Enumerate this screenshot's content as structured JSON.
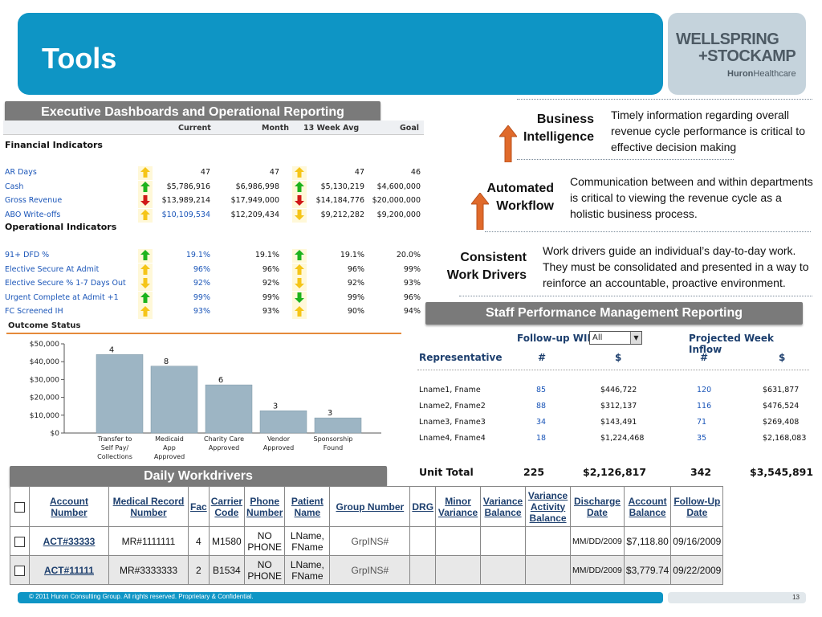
{
  "header": {
    "title": "Tools"
  },
  "logo": {
    "line1": "WELLSPRING",
    "line2": "+STOCKAMP",
    "line3_bold": "Huron",
    "line3": "Healthcare"
  },
  "sections": {
    "exec": "Executive Dashboards and Operational Reporting",
    "staff": "Staff Performance Management Reporting",
    "daily": "Daily Workdrivers"
  },
  "dashboard": {
    "columns": [
      "Current",
      "Month",
      "13 Week Avg",
      "Goal"
    ],
    "financial_title": "Financial Indicators",
    "operational_title": "Operational Indicators",
    "financial": [
      {
        "label": "AR Days",
        "a1": "up-yellow",
        "current": "47",
        "month": "47",
        "a2": "up-yellow",
        "avg": "47",
        "goal": "46"
      },
      {
        "label": "Cash",
        "a1": "up-green",
        "current": "$5,786,916",
        "month": "$6,986,998",
        "a2": "up-green",
        "avg": "$5,130,219",
        "goal": "$4,600,000"
      },
      {
        "label": "Gross Revenue",
        "a1": "down-red",
        "current": "$13,989,214",
        "month": "$17,949,000",
        "a2": "down-red",
        "avg": "$14,184,776",
        "goal": "$20,000,000"
      },
      {
        "label": "ABO Write-offs",
        "a1": "up-yellow",
        "current": "$10,109,534",
        "month": "$12,209,434",
        "a2": "down-yellow",
        "avg": "$9,212,282",
        "goal": "$9,200,000"
      }
    ],
    "operational": [
      {
        "label": "91+ DFD %",
        "a1": "up-green",
        "current": "19.1%",
        "month": "19.1%",
        "a2": "up-green",
        "avg": "19.1%",
        "goal": "20.0%"
      },
      {
        "label": "Elective Secure At Admit",
        "a1": "up-yellow",
        "current": "96%",
        "month": "96%",
        "a2": "up-yellow",
        "avg": "96%",
        "goal": "99%"
      },
      {
        "label": "Elective Secure % 1-7 Days Out",
        "a1": "down-yellow",
        "current": "92%",
        "month": "92%",
        "a2": "down-yellow",
        "avg": "92%",
        "goal": "93%"
      },
      {
        "label": "Urgent Complete at Admit +1",
        "a1": "up-green",
        "current": "99%",
        "month": "99%",
        "a2": "down-green",
        "avg": "99%",
        "goal": "96%"
      },
      {
        "label": "FC Screened IH",
        "a1": "up-yellow",
        "current": "93%",
        "month": "93%",
        "a2": "up-yellow",
        "avg": "90%",
        "goal": "94%"
      }
    ]
  },
  "outcome": {
    "title": "Outcome Status"
  },
  "chart_data": {
    "type": "bar",
    "categories": [
      "Transfer to Self Pay/ Collections",
      "Medicaid App Approved",
      "Charity Care Approved",
      "Vendor Approved",
      "Sponsorship Found"
    ],
    "category_lines": [
      [
        "Transfer to",
        "Self Pay/",
        "Collections"
      ],
      [
        "Medicaid",
        "App",
        "Approved"
      ],
      [
        "Charity Care",
        "Approved"
      ],
      [
        "Vendor",
        "Approved"
      ],
      [
        "Sponsorship",
        "Found"
      ]
    ],
    "values": [
      44000,
      37500,
      27000,
      12500,
      8500
    ],
    "data_labels": [
      "4",
      "8",
      "6",
      "3",
      "3"
    ],
    "yticks": [
      "$50,000",
      "$40,000",
      "$30,000",
      "$20,000",
      "$10,000",
      "$0"
    ],
    "ylim": [
      0,
      50000
    ],
    "bar_color": "#9db5c4"
  },
  "right_blocks": [
    {
      "label": [
        "Business",
        "Intelligence"
      ],
      "text": [
        "Timely information regarding overall",
        "revenue cycle performance is critical to",
        "effective decision making"
      ]
    },
    {
      "label": [
        "Automated",
        "Workflow"
      ],
      "text": [
        "Communication between and within departments",
        "is critical to viewing the revenue cycle as a",
        "holistic business process."
      ]
    },
    {
      "label": [
        "Consistent",
        "Work Drivers"
      ],
      "text": [
        "Work drivers guide an individual’s day-to-day work.",
        "They must be consolidated and presented in a way to",
        "reinforce an accountable, proactive environment."
      ]
    }
  ],
  "staff": {
    "followup_label": "Follow-up WIP",
    "select_value": "All",
    "inflow_label": "Projected Week Inflow",
    "col_rep": "Representative",
    "col_num": "#",
    "col_dollar": "$",
    "rows": [
      {
        "name": "Lname1, Fname",
        "n1": "85",
        "d1": "$446,722",
        "n2": "120",
        "d2": "$631,877"
      },
      {
        "name": "Lname2, Fname2",
        "n1": "88",
        "d1": "$312,137",
        "n2": "116",
        "d2": "$476,524"
      },
      {
        "name": "Lname3, Fname3",
        "n1": "34",
        "d1": "$143,491",
        "n2": "71",
        "d2": "$269,408"
      },
      {
        "name": "Lname4, Fname4",
        "n1": "18",
        "d1": "$1,224,468",
        "n2": "35",
        "d2": "$2,168,083"
      }
    ],
    "total_label": "Unit Total",
    "total": {
      "n1": "225",
      "d1": "$2,126,817",
      "n2": "342",
      "d2": "$3,545,891"
    }
  },
  "workdrivers": {
    "headers": [
      "Account Number",
      "Medical Record Number",
      "Fac",
      "Carrier Code",
      "Phone Number",
      "Patient Name",
      "Group Number",
      "DRG",
      "Minor Variance",
      "Variance Balance",
      "Variance Activity Balance",
      "Discharge Date",
      "Account Balance",
      "Follow-Up Date"
    ],
    "rows": [
      {
        "account": "ACT#33333",
        "mrn": "MR#1111111",
        "fac": "4",
        "carrier": "M1580",
        "phone": "NO PHONE",
        "patient": "LName, FName",
        "group": "GrpINS#",
        "drg": "",
        "minor": "",
        "varbal": "",
        "varact": "",
        "discharge": "MM/DD/2009",
        "balance": "$7,118.80",
        "followup": "09/16/2009"
      },
      {
        "account": "ACT#11111",
        "mrn": "MR#3333333",
        "fac": "2",
        "carrier": "B1534",
        "phone": "NO PHONE",
        "patient": "LName, FName",
        "group": "GrpINS#",
        "drg": "",
        "minor": "",
        "varbal": "",
        "varact": "",
        "discharge": "MM/DD/2009",
        "balance": "$3,779.74",
        "followup": "09/22/2009"
      }
    ]
  },
  "footer": {
    "copyright": "© 2011 Huron Consulting Group. All rights reserved. Proprietary & Confidential.",
    "page": "13"
  },
  "colors": {
    "brand_blue": "#0e95c5",
    "section_gray": "#7a7a7a",
    "link_blue": "#1a55b8",
    "arrow_green": "#1db31d",
    "arrow_yellow": "#f5c518",
    "arrow_red": "#d01818"
  }
}
